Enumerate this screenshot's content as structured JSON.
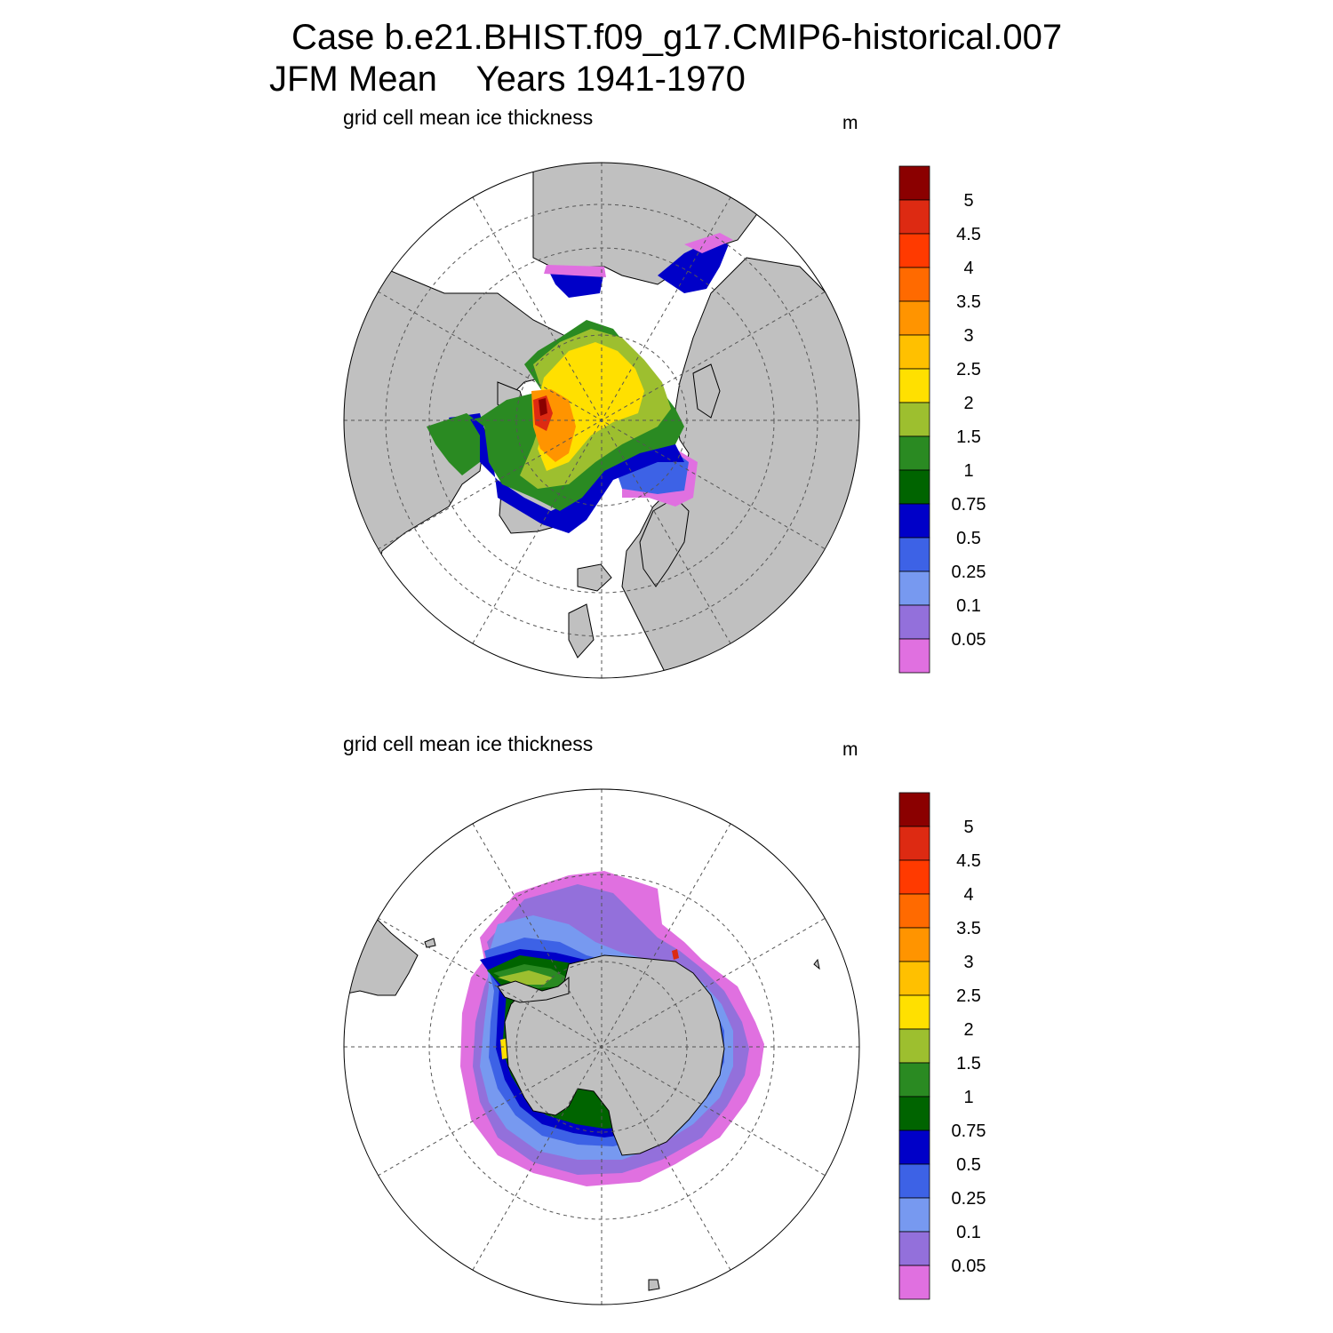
{
  "title": {
    "line1": "Case b.e21.BHIST.f09_g17.CMIP6-historical.007",
    "line2": "JFM Mean    Years 1941-1970"
  },
  "panels": [
    {
      "id": "north",
      "subtitle": "grid cell mean ice thickness",
      "units": "m"
    },
    {
      "id": "south",
      "subtitle": "grid cell mean ice thickness",
      "units": "m"
    }
  ],
  "colorbar": {
    "labels": [
      "5",
      "4.5",
      "4",
      "3.5",
      "3",
      "2.5",
      "2",
      "1.5",
      "1",
      "0.75",
      "0.5",
      "0.25",
      "0.1",
      "0.05"
    ],
    "colors": [
      "#8b0000",
      "#dd2a12",
      "#ff3a00",
      "#ff6a00",
      "#ff9400",
      "#ffc000",
      "#ffe000",
      "#9dbf2f",
      "#2a8a22",
      "#006400",
      "#0000c8",
      "#3d62e6",
      "#7799f0",
      "#9370db",
      "#e070e0"
    ]
  },
  "map_colors": {
    "land": "#c0c0c0",
    "ocean": "#ffffff",
    "coast": "#000000",
    "grid": "#555555"
  }
}
